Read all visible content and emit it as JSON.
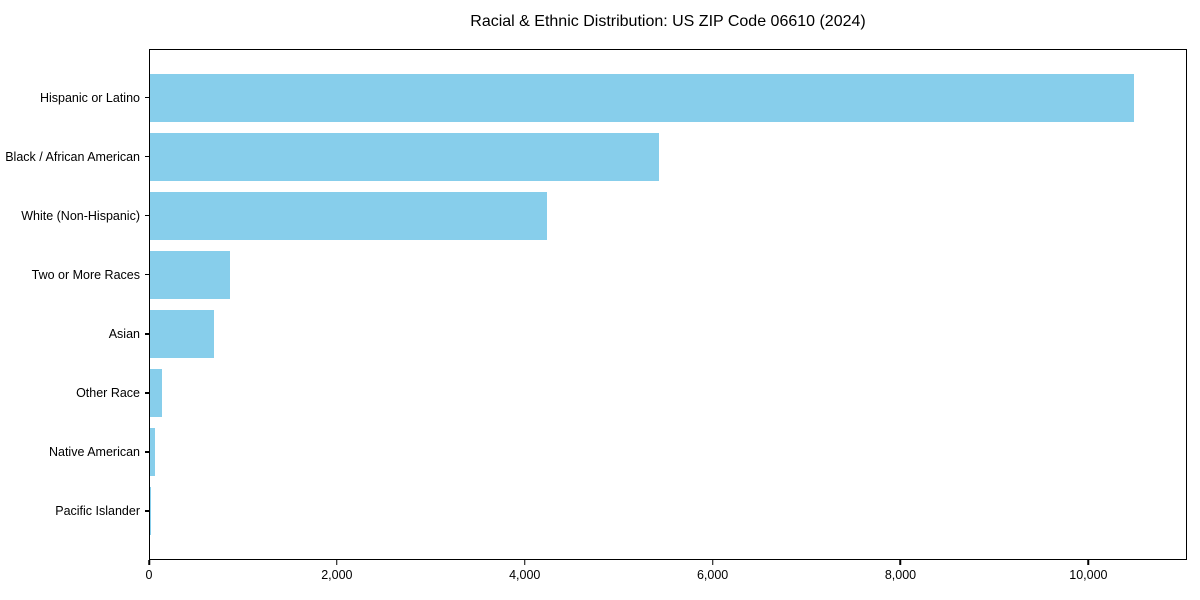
{
  "figure": {
    "background": "#ffffff",
    "text_color": "#000000"
  },
  "chart_data": {
    "type": "bar",
    "orientation": "horizontal",
    "title": "Racial & Ethnic Distribution: US ZIP Code 06610 (2024)",
    "xlabel": "",
    "ylabel": "",
    "categories": [
      "Hispanic or Latino",
      "Black / African American",
      "White (Non-Hispanic)",
      "Two or More Races",
      "Asian",
      "Other Race",
      "Native American",
      "Pacific Islander"
    ],
    "values": [
      10500,
      5430,
      4230,
      855,
      680,
      125,
      50,
      4
    ],
    "bar_color": "#87CEEB",
    "xlim": [
      0,
      11050
    ],
    "xticks": [
      0,
      2000,
      4000,
      6000,
      8000,
      10000
    ],
    "xtick_labels": [
      "0",
      "2,000",
      "4,000",
      "6,000",
      "8,000",
      "10,000"
    ],
    "grid": false,
    "legend": null
  }
}
